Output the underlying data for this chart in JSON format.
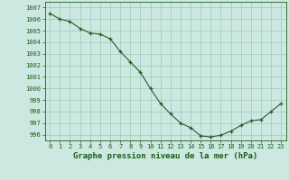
{
  "title": "Graphe pression niveau de la mer (hPa)",
  "x_values": [
    0,
    1,
    2,
    3,
    4,
    5,
    6,
    7,
    8,
    9,
    10,
    11,
    12,
    13,
    14,
    15,
    16,
    17,
    18,
    19,
    20,
    21,
    22,
    23
  ],
  "y_values": [
    1006.5,
    1006.0,
    1005.8,
    1005.2,
    1004.8,
    1004.7,
    1004.3,
    1003.2,
    1002.3,
    1001.4,
    1000.0,
    998.7,
    997.8,
    997.0,
    996.6,
    995.9,
    995.8,
    995.95,
    996.3,
    996.8,
    997.2,
    997.3,
    998.0,
    998.7
  ],
  "line_color": "#2d5a27",
  "marker": "+",
  "bg_color": "#cce8e0",
  "grid_color": "#99ccbb",
  "text_color": "#1a5c1a",
  "ylim_min": 995.5,
  "ylim_max": 1007.5,
  "xlim_min": -0.5,
  "xlim_max": 23.5,
  "yticks": [
    996,
    997,
    998,
    999,
    1000,
    1001,
    1002,
    1003,
    1004,
    1005,
    1006,
    1007
  ],
  "xticks": [
    0,
    1,
    2,
    3,
    4,
    5,
    6,
    7,
    8,
    9,
    10,
    11,
    12,
    13,
    14,
    15,
    16,
    17,
    18,
    19,
    20,
    21,
    22,
    23
  ],
  "title_fontsize": 6.5,
  "tick_fontsize": 5.0,
  "linewidth": 0.8,
  "markersize": 3.5,
  "markeredgewidth": 0.9
}
